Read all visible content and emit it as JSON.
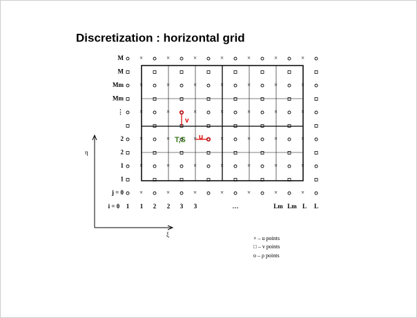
{
  "title": "Discretization : horizontal grid",
  "grid": {
    "row_labels": [
      "M",
      "M",
      "Mm",
      "Mm",
      "⋮",
      null,
      "2",
      "2",
      "1",
      "1",
      "j = 0"
    ],
    "column_labels": [
      "i = 0",
      "1",
      "1",
      "2",
      "2",
      "3",
      "3",
      "…",
      "Lm",
      "Lm",
      "L",
      "L"
    ]
  },
  "annotations": {
    "v": "v",
    "u": "u",
    "ts": "T,S"
  },
  "axes": {
    "eta": "η",
    "xi": "ξ"
  },
  "legend": [
    "× – u points",
    "□ – v points",
    "o – ρ points"
  ]
}
